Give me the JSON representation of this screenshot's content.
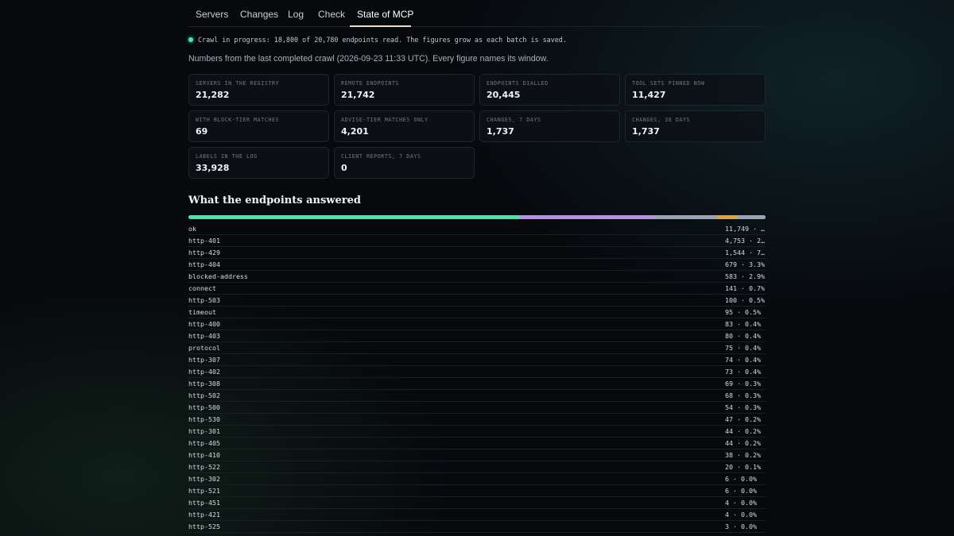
{
  "nav": {
    "tabs": [
      {
        "label": "Servers"
      },
      {
        "label": "Changes"
      },
      {
        "label": "Log"
      },
      {
        "label": "Check"
      },
      {
        "label": "State of MCP"
      }
    ],
    "active": "State of MCP"
  },
  "status": {
    "progress_text": "Crawl in progress: 18,800 of 20,780 endpoints read. The figures grow as each batch is saved.",
    "dot_color": "#46e6a6"
  },
  "subtitle": "Numbers from the last completed crawl (2026-09-23 11:33 UTC). Every figure names its window.",
  "stats": [
    {
      "label": "Servers in the registry",
      "value": "21,282"
    },
    {
      "label": "Remote endpoints",
      "value": "21,742"
    },
    {
      "label": "Endpoints dialled",
      "value": "20,445"
    },
    {
      "label": "Tool sets pinned now",
      "value": "11,427"
    },
    {
      "label": "With block-tier matches",
      "value": "69"
    },
    {
      "label": "Advise-tier matches only",
      "value": "4,201"
    },
    {
      "label": "Changes, 7 days",
      "value": "1,737"
    },
    {
      "label": "Changes, 30 days",
      "value": "1,737"
    },
    {
      "label": "Labels in the log",
      "value": "33,928"
    },
    {
      "label": "Client reports, 7 days",
      "value": "0"
    }
  ],
  "section_title": "What the endpoints answered",
  "chart_data": {
    "type": "bar",
    "title": "What the endpoints answered",
    "categories": [
      "ok",
      "http-401",
      "http-429",
      "http-404",
      "blocked-address",
      "connect",
      "http-503",
      "timeout",
      "http-400",
      "http-403",
      "protocol",
      "http-307",
      "http-402",
      "http-308",
      "http-502",
      "http-500",
      "http-530",
      "http-301",
      "http-405",
      "http-410",
      "http-522",
      "http-302",
      "http-521",
      "http-451",
      "http-421",
      "http-525"
    ],
    "values": [
      11749,
      4753,
      1544,
      679,
      583,
      141,
      100,
      95,
      83,
      80,
      75,
      74,
      73,
      69,
      68,
      54,
      47,
      44,
      44,
      38,
      20,
      6,
      6,
      4,
      4,
      3
    ],
    "labels": [
      "11,749 · …",
      "4,753 · 2…",
      "1,544 · 7…",
      "679 · 3.3%",
      "583 · 2.9%",
      "141 · 0.7%",
      "100 · 0.5%",
      "95 · 0.5%",
      "83 · 0.4%",
      "80 · 0.4%",
      "75 · 0.4%",
      "74 · 0.4%",
      "73 · 0.4%",
      "69 · 0.3%",
      "68 · 0.3%",
      "54 · 0.3%",
      "47 · 0.2%",
      "44 · 0.2%",
      "44 · 0.2%",
      "38 · 0.2%",
      "20 · 0.1%",
      "6 · 0.0%",
      "6 · 0.0%",
      "4 · 0.0%",
      "4 · 0.0%",
      "3 · 0.0%"
    ],
    "segment_colors": {
      "ok": "#46e6a6",
      "http-401": "#b98cf0",
      "http-429": "#9aa3b2",
      "blocked-address": "#e0a43a",
      "connect": "#e0a43a",
      "default": "#9aa3b2"
    }
  }
}
